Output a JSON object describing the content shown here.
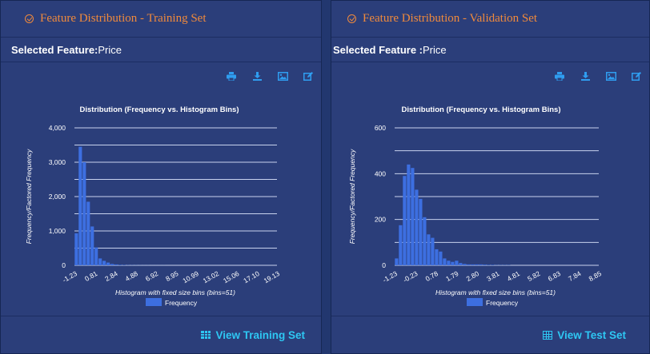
{
  "panels": [
    {
      "title": "Feature Distribution - Training Set",
      "selected_label": "Selected Feature:",
      "selected_value": "Price",
      "toolbar": [
        "print-icon",
        "download-icon",
        "image-icon",
        "edit-icon"
      ],
      "link_label": "View Training Set",
      "link_icon": "grid-icon"
    },
    {
      "title": "Feature Distribution - Validation Set",
      "selected_label": "Selected Feature :",
      "selected_value": "Price",
      "toolbar": [
        "print-icon",
        "download-icon",
        "image-icon",
        "edit-icon"
      ],
      "link_label": "View Test Set",
      "link_icon": "table-icon"
    }
  ],
  "colors": {
    "accent": "#f08a3c",
    "link": "#2ec7f3",
    "bar": "#3d6fe0",
    "background": "#2b3e7a",
    "toolbar": "#2f9df0"
  },
  "chart_data": [
    {
      "type": "bar",
      "title": "Distribution (Frequency vs. Histogram Bins)",
      "xlabel": "Histogram with fixed size bins (bins=51)",
      "ylabel": "Frequency/Factored Frequency",
      "x_tick_labels": [
        "-1.23",
        "0.81",
        "2.84",
        "4.88",
        "6.92",
        "8.95",
        "10.99",
        "13.02",
        "15.06",
        "17.10",
        "19.13"
      ],
      "y_tick_labels": [
        "0",
        "1,000",
        "2,000",
        "3,000",
        "4,000"
      ],
      "ylim": [
        0,
        4000
      ],
      "grid": true,
      "legend": "bottom-center",
      "series": [
        {
          "name": "Frequency",
          "values": [
            930,
            3450,
            3000,
            1850,
            1130,
            520,
            200,
            130,
            80,
            40,
            25,
            15,
            10,
            6,
            5,
            4,
            3,
            2,
            2,
            1,
            1,
            1,
            1,
            0,
            0,
            0,
            0,
            0,
            0,
            0,
            0,
            0,
            0,
            0,
            0,
            0,
            0,
            0,
            0,
            0,
            0,
            0,
            0,
            0,
            0,
            0,
            0,
            0,
            0,
            0,
            0
          ]
        }
      ]
    },
    {
      "type": "bar",
      "title": "Distribution (Frequency vs. Histogram Bins)",
      "xlabel": "Histogram with fixed size bins (bins=51)",
      "ylabel": "Frequency/Factored Frequency",
      "x_tick_labels": [
        "-1.23",
        "-0.23",
        "0.78",
        "1.79",
        "2.80",
        "3.81",
        "4.81",
        "5.82",
        "6.83",
        "7.84",
        "8.85"
      ],
      "y_tick_labels": [
        "0",
        "200",
        "400",
        "600"
      ],
      "ylim": [
        0,
        600
      ],
      "grid": true,
      "legend": "bottom-center",
      "series": [
        {
          "name": "Frequency",
          "values": [
            30,
            175,
            390,
            440,
            425,
            330,
            290,
            210,
            135,
            120,
            70,
            60,
            30,
            20,
            15,
            20,
            10,
            6,
            4,
            4,
            4,
            4,
            3,
            2,
            2,
            1,
            1,
            1,
            1,
            0,
            0,
            0,
            0,
            0,
            0,
            0,
            0,
            0,
            0,
            0,
            0,
            0,
            0,
            0,
            0,
            0,
            0,
            0,
            0,
            0,
            0
          ]
        }
      ]
    }
  ]
}
